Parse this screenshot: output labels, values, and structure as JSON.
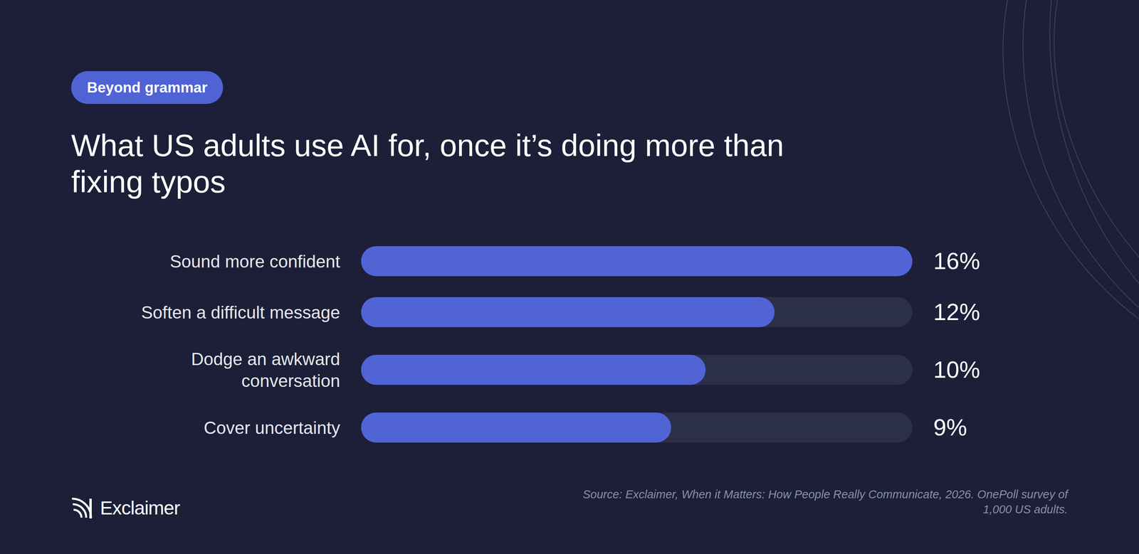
{
  "chart_data": {
    "type": "bar",
    "orientation": "horizontal",
    "subtitle": "Beyond grammar",
    "title": "What US adults use AI for, once it’s doing more than fixing typos",
    "categories": [
      "Sound more confident",
      "Soften a difficult message",
      "Dodge an awkward conversation",
      "Cover uncertainty"
    ],
    "values": [
      16,
      12,
      10,
      9
    ],
    "value_labels": [
      "16%",
      "12%",
      "10%",
      "9%"
    ],
    "data_labels": true,
    "color": "#5064d6",
    "xlim": [
      0,
      16
    ],
    "tick_labels": false,
    "grid": false,
    "source": "Source: Exclaimer, When it Matters: How People Really Communicate, 2026. OnePoll survey of 1,000 US adults.",
    "brand": "Exclaimer"
  }
}
